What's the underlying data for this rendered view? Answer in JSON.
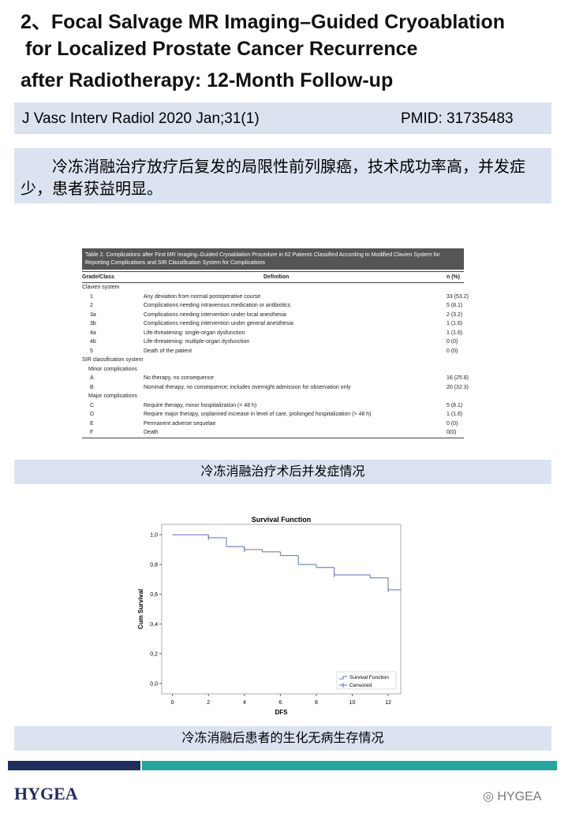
{
  "header": {
    "title_lines": [
      "2、Focal Salvage MR Imaging–Guided Cryoablation",
      "for Localized Prostate Cancer Recurrence",
      "after Radiotherapy: 12-Month Follow-up"
    ],
    "citation": "J Vasc Interv Radiol 2020 Jan;31(1)",
    "pmid": "PMID: 31735483",
    "summary": "冷冻消融治疗放疗后复发的局限性前列腺癌，技术成功率高，并发症少，患者获益明显。"
  },
  "table": {
    "caption": "Table 2. Complications after First MR Imaging–Guided Cryoablation Procedure in 62 Patients Classified According to Modified Clavien System for Reporting Complications and SIR Classification System for Complications",
    "columns": [
      "Grade/Class",
      "Definition",
      "n (%)"
    ],
    "rows": [
      {
        "label": "Clavien system"
      },
      {
        "grade": "1",
        "definition": "Any deviation from normal postoperative course",
        "n": "33 (53.2)"
      },
      {
        "grade": "2",
        "definition": "Complications needing intravenous medication or antibiotics",
        "n": "5 (8.1)"
      },
      {
        "grade": "3a",
        "definition": "Complications needing intervention under local anesthesia",
        "n": "2 (3.2)"
      },
      {
        "grade": "3b",
        "definition": "Complications needing intervention under general anesthesia",
        "n": "1 (1.6)"
      },
      {
        "grade": "4a",
        "definition": "Life-threatening: single-organ dysfunction",
        "n": "1 (1.6)"
      },
      {
        "grade": "4b",
        "definition": "Life-threatening: multiple-organ dysfunction",
        "n": "0 (0)"
      },
      {
        "grade": "5",
        "definition": "Death of the patient",
        "n": "0 (0)"
      },
      {
        "label": "SIR classification system"
      },
      {
        "sublabel": "Minor complications"
      },
      {
        "grade": "A",
        "definition": "No therapy, no consequence",
        "n": "16 (25.8)"
      },
      {
        "grade": "B",
        "definition": "Nominal therapy, no consequence; includes overnight admission for observation only",
        "n": "20 (32.3)"
      },
      {
        "sublabel": "Major complications"
      },
      {
        "grade": "C",
        "definition": "Require therapy, minor hospitalization (< 48 h)",
        "n": "5 (8.1)"
      },
      {
        "grade": "D",
        "definition": "Require major therapy, unplanned increase in level of care, prolonged hospitalization (> 48 h)",
        "n": "1 (1.6)"
      },
      {
        "grade": "E",
        "definition": "Permanent adverse sequelae",
        "n": "0 (0)"
      },
      {
        "grade": "F",
        "definition": "Death",
        "n": "0(0)"
      }
    ]
  },
  "table_note": "冷冻消融治疗术后并发症情况",
  "chart": {
    "type": "line",
    "title": "Survival Function",
    "x_label": "DFS",
    "y_label": "Cum Survival",
    "xlim": [
      -0.6,
      12.7
    ],
    "xticks": [
      0,
      2,
      4,
      6,
      8,
      10,
      12
    ],
    "ylim": [
      -0.07,
      1.07
    ],
    "yticks": [
      {
        "value": 0,
        "label": "0,0"
      },
      {
        "value": 0.2,
        "label": "0,2"
      },
      {
        "value": 0.4,
        "label": "0,4"
      },
      {
        "value": 0.6,
        "label": "0,6"
      },
      {
        "value": 0.8,
        "label": "0,8"
      },
      {
        "value": 1,
        "label": "1,0"
      }
    ],
    "series": [
      {
        "name": "Survival Function",
        "color": "#5b6fbf",
        "x": [
          0,
          2,
          3,
          4,
          5,
          6,
          7,
          8,
          9,
          11,
          12,
          12.7
        ],
        "values": [
          1.0,
          0.98,
          0.92,
          0.9,
          0.885,
          0.86,
          0.8,
          0.78,
          0.73,
          0.71,
          0.63,
          0.63
        ]
      },
      {
        "name": "Censored",
        "color": "#5b6fbf",
        "x": [
          2,
          4,
          9,
          12
        ],
        "values": [
          0.98,
          0.9,
          0.73,
          0.63
        ]
      }
    ]
  },
  "chart_note": "冷冻消融后患者的生化无病生存情况",
  "footer": {
    "logo": "HYGEA",
    "watermark": "HYGEA"
  }
}
